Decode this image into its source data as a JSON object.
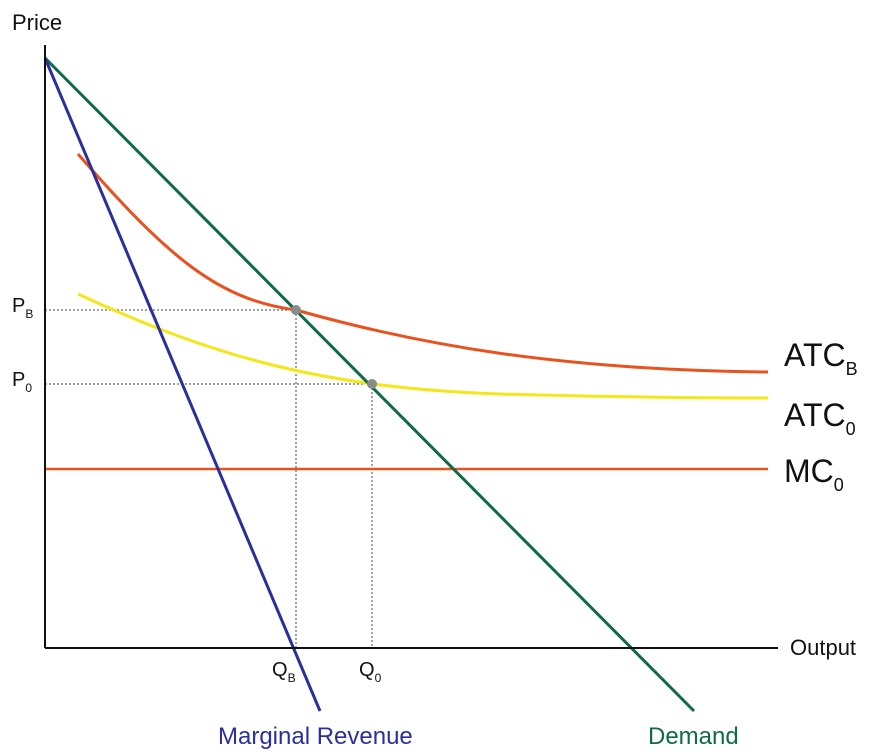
{
  "chart_data": {
    "type": "line",
    "title": "",
    "ylabel": "Price",
    "xlabel": "Output",
    "grid": false,
    "legend": "none",
    "colors": {
      "atc_b": "#E8521E",
      "atc_0": "#F2E818",
      "mc_0": "#E8521E",
      "demand": "#0E6B45",
      "marginal_revenue": "#2B2F9E",
      "axis": "#111111",
      "guide": "#444444",
      "point": "#8A8A8A"
    },
    "curve_labels": {
      "atc_b": {
        "main": "ATC",
        "sub": "B"
      },
      "atc_0": {
        "main": "ATC",
        "sub": "0"
      },
      "mc_0": {
        "main": "MC",
        "sub": "0"
      },
      "demand": "Demand",
      "marginal_revenue": "Marginal Revenue"
    },
    "price_ticks": [
      {
        "main": "P",
        "sub": "B"
      },
      {
        "main": "P",
        "sub": "0"
      }
    ],
    "quantity_ticks": [
      {
        "main": "Q",
        "sub": "B"
      },
      {
        "main": "Q",
        "sub": "0"
      }
    ]
  }
}
